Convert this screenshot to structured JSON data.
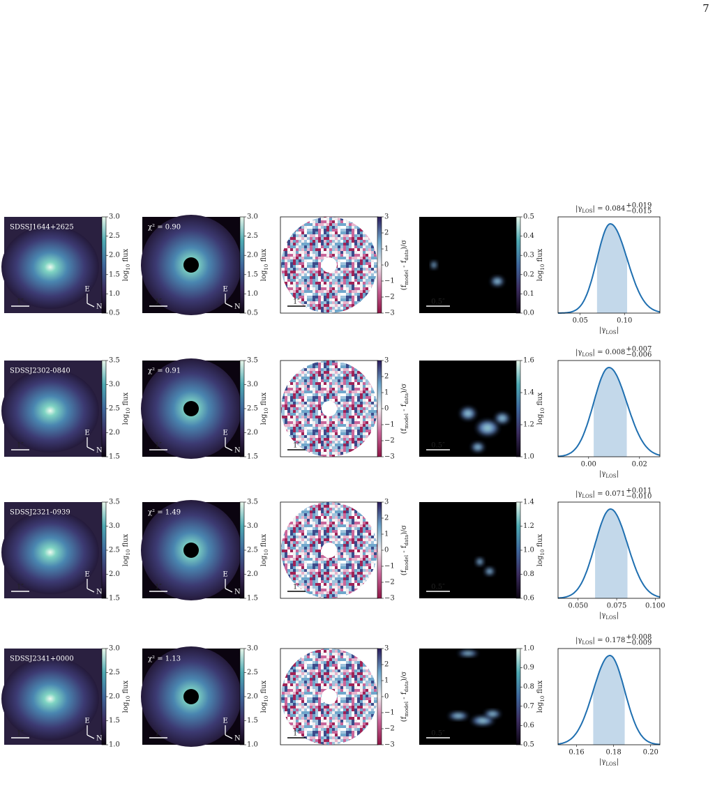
{
  "page_number": "7",
  "flux_label": [
    "log",
    "10",
    " flux"
  ],
  "residual_label": [
    "(f",
    "model",
    " - f",
    "data",
    ")/σ"
  ],
  "residual_cbar": {
    "lim": [
      -3,
      3
    ],
    "ticks": [
      {
        "value": -3,
        "label": "−3"
      },
      {
        "value": -2,
        "label": "−2"
      },
      {
        "value": -1,
        "label": "−1"
      },
      0,
      1,
      2,
      3
    ]
  },
  "gamma_label": [
    "|γ",
    "LOS",
    "|"
  ],
  "equals": " = ",
  "scale_bar": "1″",
  "source_scale_bar": "0.5″",
  "compass": {
    "east": "E",
    "north": "N"
  },
  "rows": [
    {
      "name": "SDSSJ1644+2625",
      "chi2": "χ² = 0.90",
      "flux_cbar": {
        "lim": [
          0.5,
          3
        ],
        "ticks": [
          0.5,
          {
            "value": 1,
            "label": "1.0"
          },
          1.5,
          {
            "value": 2,
            "label": "2.0"
          },
          2.5,
          {
            "value": 3,
            "label": "3.0"
          }
        ]
      },
      "source_cbar": {
        "lim": [
          0,
          0.5
        ],
        "ticks": [
          {
            "value": 0,
            "label": "0.0"
          },
          0.1,
          0.2,
          0.3,
          0.4,
          0.5
        ]
      },
      "posterior": {
        "estimate": 0.084,
        "err_plus": {
          "value": 0.019,
          "label": "+0.019"
        },
        "err_minus": {
          "value": -0.015,
          "label": "−0.015"
        },
        "xlim": [
          0.025,
          0.14
        ],
        "xticks": [
          0.05,
          {
            "value": 0.1,
            "label": "0.10"
          }
        ]
      }
    },
    {
      "name": "SDSSJ2302-0840",
      "chi2": "χ² = 0.91",
      "flux_cbar": {
        "lim": [
          1.5,
          3.5
        ],
        "ticks": [
          1.5,
          {
            "value": 2,
            "label": "2.0"
          },
          2.5,
          {
            "value": 3,
            "label": "3.0"
          },
          3.5
        ]
      },
      "source_cbar": {
        "lim": [
          1,
          1.6
        ],
        "ticks": [
          {
            "value": 1,
            "label": "1.0"
          },
          1.2,
          1.4,
          1.6
        ]
      },
      "posterior": {
        "estimate": 0.008,
        "err_plus": {
          "value": 0.007,
          "label": "+0.007"
        },
        "err_minus": {
          "value": -0.006,
          "label": "−0.006"
        },
        "xlim": [
          -0.012,
          0.028
        ],
        "xticks": [
          {
            "value": 0,
            "label": "0.00"
          },
          0.02
        ]
      }
    },
    {
      "name": "SDSSJ2321-0939",
      "chi2": "χ² = 1.49",
      "flux_cbar": {
        "lim": [
          1.5,
          3.5
        ],
        "ticks": [
          1.5,
          {
            "value": 2,
            "label": "2.0"
          },
          2.5,
          {
            "value": 3,
            "label": "3.0"
          },
          3.5
        ]
      },
      "source_cbar": {
        "lim": [
          0.6,
          1.4
        ],
        "ticks": [
          0.6,
          0.8,
          {
            "value": 1,
            "label": "1.0"
          },
          1.2,
          1.4
        ]
      },
      "posterior": {
        "estimate": 0.071,
        "err_plus": {
          "value": 0.011,
          "label": "+0.011"
        },
        "err_minus": {
          "value": -0.01,
          "label": "−0.010"
        },
        "xlim": [
          0.037,
          0.103
        ],
        "xticks": [
          {
            "value": 0.05,
            "label": "0.050"
          },
          0.075,
          {
            "value": 0.1,
            "label": "0.100"
          }
        ]
      }
    },
    {
      "name": "SDSSJ2341+0000",
      "chi2": "χ² = 1.13",
      "flux_cbar": {
        "lim": [
          1,
          3
        ],
        "ticks": [
          {
            "value": 1,
            "label": "1.0"
          },
          1.5,
          {
            "value": 2,
            "label": "2.0"
          },
          2.5,
          {
            "value": 3,
            "label": "3.0"
          }
        ]
      },
      "source_cbar": {
        "lim": [
          0.5,
          1
        ],
        "ticks": [
          0.5,
          0.6,
          0.7,
          0.8,
          0.9,
          {
            "value": 1,
            "label": "1.0"
          }
        ]
      },
      "posterior": {
        "estimate": 0.178,
        "err_plus": {
          "value": 0.008,
          "label": "+0.008"
        },
        "err_minus": {
          "value": -0.009,
          "label": "−0.009"
        },
        "xlim": [
          0.15,
          0.205
        ],
        "xticks": [
          0.16,
          0.18,
          {
            "value": 0.2,
            "label": "0.20"
          }
        ]
      }
    }
  ]
}
